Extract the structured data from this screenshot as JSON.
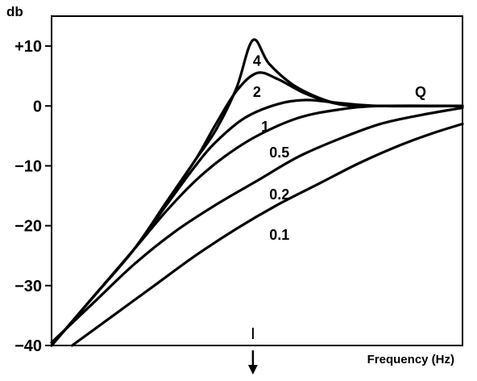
{
  "chart_data": {
    "type": "line",
    "title": "",
    "ylabel": "db",
    "xlabel": "Frequency (Hz)",
    "yticks": [
      {
        "value": 10,
        "label": "+10"
      },
      {
        "value": 0,
        "label": "0"
      },
      {
        "value": -10,
        "label": "−10"
      },
      {
        "value": -20,
        "label": "−20"
      },
      {
        "value": -30,
        "label": "−30"
      },
      {
        "value": -40,
        "label": "−40"
      }
    ],
    "ylim": [
      -40,
      15
    ],
    "xlim": [
      0,
      1
    ],
    "grid": false,
    "legend_title": "Q",
    "cutoff_marker": {
      "x": 0.49,
      "direction": "down"
    },
    "series": [
      {
        "name": "4",
        "points": [
          [
            0,
            -40
          ],
          [
            0.1,
            -32
          ],
          [
            0.2,
            -24
          ],
          [
            0.28,
            -16
          ],
          [
            0.35,
            -9
          ],
          [
            0.4,
            -4
          ],
          [
            0.45,
            3
          ],
          [
            0.49,
            11
          ],
          [
            0.53,
            7
          ],
          [
            0.6,
            3
          ],
          [
            0.7,
            0.3
          ],
          [
            0.8,
            0
          ],
          [
            1,
            0
          ]
        ]
      },
      {
        "name": "2",
        "points": [
          [
            0,
            -40
          ],
          [
            0.1,
            -32
          ],
          [
            0.2,
            -24
          ],
          [
            0.28,
            -16
          ],
          [
            0.35,
            -9
          ],
          [
            0.4,
            -3
          ],
          [
            0.45,
            2.5
          ],
          [
            0.5,
            5.5
          ],
          [
            0.55,
            4.5
          ],
          [
            0.62,
            2
          ],
          [
            0.7,
            0.3
          ],
          [
            0.8,
            0
          ],
          [
            1,
            0
          ]
        ]
      },
      {
        "name": "1",
        "points": [
          [
            0,
            -40
          ],
          [
            0.1,
            -32
          ],
          [
            0.2,
            -24
          ],
          [
            0.28,
            -16.5
          ],
          [
            0.35,
            -10
          ],
          [
            0.4,
            -6
          ],
          [
            0.47,
            -2
          ],
          [
            0.55,
            0.3
          ],
          [
            0.62,
            1
          ],
          [
            0.7,
            0.5
          ],
          [
            0.8,
            0
          ],
          [
            1,
            0
          ]
        ]
      },
      {
        "name": "0.5",
        "points": [
          [
            0,
            -40
          ],
          [
            0.1,
            -32
          ],
          [
            0.2,
            -24
          ],
          [
            0.28,
            -17.5
          ],
          [
            0.35,
            -12.5
          ],
          [
            0.42,
            -8.5
          ],
          [
            0.5,
            -5
          ],
          [
            0.6,
            -2
          ],
          [
            0.7,
            -0.6
          ],
          [
            0.8,
            0
          ],
          [
            1,
            0
          ]
        ]
      },
      {
        "name": "0.2",
        "points": [
          [
            0,
            -39.5
          ],
          [
            0.1,
            -33
          ],
          [
            0.2,
            -26.5
          ],
          [
            0.3,
            -21
          ],
          [
            0.4,
            -16.5
          ],
          [
            0.5,
            -12.5
          ],
          [
            0.6,
            -8.5
          ],
          [
            0.7,
            -5.5
          ],
          [
            0.8,
            -3
          ],
          [
            0.9,
            -1.5
          ],
          [
            1,
            -0.3
          ]
        ]
      },
      {
        "name": "0.1",
        "points": [
          [
            0.05,
            -40
          ],
          [
            0.15,
            -35
          ],
          [
            0.25,
            -30
          ],
          [
            0.35,
            -25
          ],
          [
            0.45,
            -20.5
          ],
          [
            0.55,
            -16.5
          ],
          [
            0.65,
            -13
          ],
          [
            0.75,
            -9.5
          ],
          [
            0.85,
            -6.5
          ],
          [
            0.93,
            -4.5
          ],
          [
            1,
            -3
          ]
        ]
      }
    ]
  }
}
